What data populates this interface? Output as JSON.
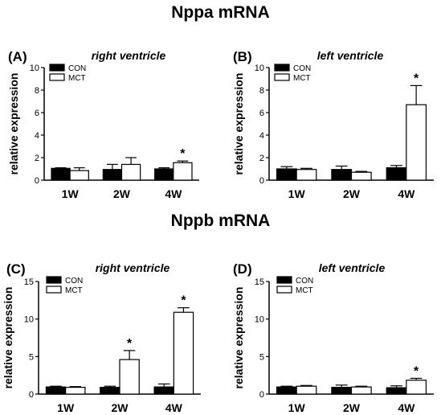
{
  "sections": [
    {
      "title": "Nppa mRNA"
    },
    {
      "title": "Nppb mRNA"
    }
  ],
  "colors": {
    "con": "#000000",
    "mct": "#ffffff",
    "axis": "#000000"
  },
  "chart_data": [
    {
      "type": "bar",
      "panel": "(A)",
      "title": "right ventricle",
      "ylabel": "relative expression",
      "ylim": [
        0,
        10
      ],
      "yticks": [
        0,
        2,
        4,
        6,
        8,
        10
      ],
      "categories": [
        "1W",
        "2W",
        "4W"
      ],
      "legend_position": "top-left",
      "series": [
        {
          "name": "CON",
          "values": [
            1.05,
            0.95,
            1.0
          ],
          "errors": [
            0.05,
            0.45,
            0.1
          ]
        },
        {
          "name": "MCT",
          "values": [
            0.85,
            1.4,
            1.55
          ],
          "errors": [
            0.25,
            0.6,
            0.15
          ]
        }
      ],
      "significance": [
        {
          "category": "4W",
          "series": "MCT",
          "label": "*"
        }
      ]
    },
    {
      "type": "bar",
      "panel": "(B)",
      "title": "left ventricle",
      "ylabel": "relative expression",
      "ylim": [
        0,
        10
      ],
      "yticks": [
        0,
        2,
        4,
        6,
        8,
        10
      ],
      "categories": [
        "1W",
        "2W",
        "4W"
      ],
      "legend_position": "top-left",
      "series": [
        {
          "name": "CON",
          "values": [
            1.0,
            0.95,
            1.1
          ],
          "errors": [
            0.2,
            0.3,
            0.2
          ]
        },
        {
          "name": "MCT",
          "values": [
            0.95,
            0.7,
            6.7
          ],
          "errors": [
            0.1,
            0.08,
            1.7
          ]
        }
      ],
      "significance": [
        {
          "category": "4W",
          "series": "MCT",
          "label": "*"
        }
      ]
    },
    {
      "type": "bar",
      "panel": "(C)",
      "title": "right ventricle",
      "ylabel": "relative expression",
      "ylim": [
        0,
        15
      ],
      "yticks": [
        0,
        5,
        10,
        15
      ],
      "categories": [
        "1W",
        "2W",
        "4W"
      ],
      "legend_position": "top-left",
      "series": [
        {
          "name": "CON",
          "values": [
            0.95,
            0.9,
            0.95
          ],
          "errors": [
            0.1,
            0.15,
            0.4
          ]
        },
        {
          "name": "MCT",
          "values": [
            0.9,
            4.6,
            10.9
          ],
          "errors": [
            0.1,
            1.2,
            0.6
          ]
        }
      ],
      "significance": [
        {
          "category": "2W",
          "series": "MCT",
          "label": "*"
        },
        {
          "category": "4W",
          "series": "MCT",
          "label": "*"
        }
      ]
    },
    {
      "type": "bar",
      "panel": "(D)",
      "title": "left ventricle",
      "ylabel": "relative expression",
      "ylim": [
        0,
        15
      ],
      "yticks": [
        0,
        5,
        10,
        15
      ],
      "categories": [
        "1W",
        "2W",
        "4W"
      ],
      "legend_position": "top-left",
      "series": [
        {
          "name": "CON",
          "values": [
            0.95,
            0.9,
            0.85
          ],
          "errors": [
            0.1,
            0.3,
            0.25
          ]
        },
        {
          "name": "MCT",
          "values": [
            1.05,
            0.95,
            1.85
          ],
          "errors": [
            0.1,
            0.1,
            0.25
          ]
        }
      ],
      "significance": [
        {
          "category": "4W",
          "series": "MCT",
          "label": "*"
        }
      ]
    }
  ]
}
